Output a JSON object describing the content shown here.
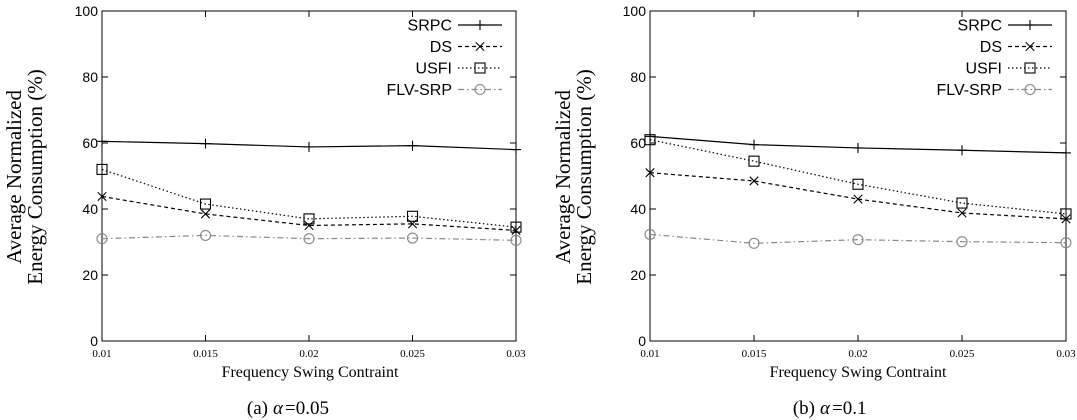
{
  "chart_data": [
    {
      "type": "line",
      "caption_prefix": "(a)",
      "caption_symbol": "α",
      "caption_value": "=0.05",
      "xlabel": "Frequency Swing Contraint",
      "ylabel_line1": "Average Normalized",
      "ylabel_line2": "Energy Consumption (%)",
      "x": [
        0.01,
        0.015,
        0.02,
        0.025,
        0.03
      ],
      "x_tick_labels": [
        "0.01",
        "0.015",
        "0.02",
        "0.025",
        "0.03"
      ],
      "y_ticks": [
        "0",
        "20",
        "40",
        "60",
        "80",
        "100"
      ],
      "xlim": [
        0.01,
        0.03
      ],
      "ylim": [
        0,
        100
      ],
      "grid": false,
      "legend_position": "top-right",
      "series": [
        {
          "name": "SRPC",
          "marker": "plus",
          "dash": "solid",
          "color": "#000000",
          "values": [
            60.5,
            59.8,
            58.8,
            59.2,
            58.0
          ]
        },
        {
          "name": "DS",
          "marker": "x",
          "dash": "dashed",
          "color": "#000000",
          "values": [
            43.8,
            38.5,
            35.0,
            35.5,
            33.5
          ]
        },
        {
          "name": "USFI",
          "marker": "square",
          "dash": "dotted",
          "color": "#000000",
          "values": [
            52.0,
            41.5,
            37.0,
            37.8,
            34.5
          ]
        },
        {
          "name": "FLV-SRP",
          "marker": "circle",
          "dash": "dashdot",
          "color": "#888888",
          "values": [
            31.0,
            32.0,
            31.0,
            31.2,
            30.5
          ]
        }
      ]
    },
    {
      "type": "line",
      "caption_prefix": "(b)",
      "caption_symbol": "α",
      "caption_value": "=0.1",
      "xlabel": "Frequency Swing Contraint",
      "ylabel_line1": "Average Normalized",
      "ylabel_line2": "Energy Consumption (%)",
      "x": [
        0.01,
        0.015,
        0.02,
        0.025,
        0.03
      ],
      "x_tick_labels": [
        "0.01",
        "0.015",
        "0.02",
        "0.025",
        "0.03"
      ],
      "y_ticks": [
        "0",
        "20",
        "40",
        "60",
        "80",
        "100"
      ],
      "xlim": [
        0.01,
        0.03
      ],
      "ylim": [
        0,
        100
      ],
      "grid": false,
      "legend_position": "top-right",
      "series": [
        {
          "name": "SRPC",
          "marker": "plus",
          "dash": "solid",
          "color": "#000000",
          "values": [
            62.0,
            59.5,
            58.5,
            57.8,
            57.0
          ]
        },
        {
          "name": "DS",
          "marker": "x",
          "dash": "dashed",
          "color": "#000000",
          "values": [
            51.0,
            48.5,
            43.0,
            38.8,
            37.0
          ]
        },
        {
          "name": "USFI",
          "marker": "square",
          "dash": "dotted",
          "color": "#000000",
          "values": [
            61.0,
            54.5,
            47.5,
            41.8,
            38.5
          ]
        },
        {
          "name": "FLV-SRP",
          "marker": "circle",
          "dash": "dashdot",
          "color": "#888888",
          "values": [
            32.3,
            29.6,
            30.7,
            30.1,
            29.8
          ]
        }
      ]
    }
  ]
}
